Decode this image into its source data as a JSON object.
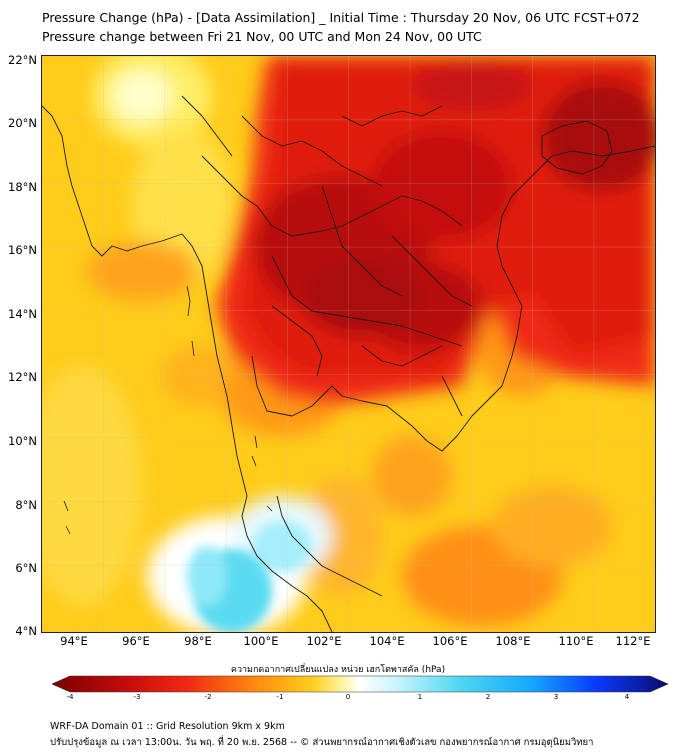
{
  "title": {
    "line1": "Pressure Change (hPa) - [Data Assimilation] _ Initial Time : Thursday 20 Nov, 06 UTC FCST+072",
    "line2": "Pressure change between Fri 21 Nov, 00 UTC and Mon 24 Nov, 00 UTC"
  },
  "axes": {
    "lat_labels": [
      "22°N",
      "20°N",
      "18°N",
      "16°N",
      "14°N",
      "12°N",
      "10°N",
      "8°N",
      "6°N",
      "4°N"
    ],
    "lon_labels": [
      "94°E",
      "96°E",
      "98°E",
      "100°E",
      "102°E",
      "104°E",
      "106°E",
      "108°E",
      "110°E",
      "112°E"
    ]
  },
  "colorbar": {
    "title": "ความกดอากาศเปลี่ยนแปลง หน่วย เฮกโตพาสคัล (hPa)",
    "ticks": [
      "-4",
      "-3",
      "-2",
      "-1",
      "0",
      "1",
      "2",
      "3",
      "4"
    ],
    "range": [
      -4,
      4
    ],
    "colors": {
      "dark_red": "#8b0000",
      "red": "#e31a1c",
      "orange": "#ff7f00",
      "yellow": "#ffd21e",
      "white": "#ffffff",
      "cyan": "#4fd8f0",
      "blue": "#0a3cff",
      "navy": "#0c0c6e"
    }
  },
  "footer": {
    "line1": "WRF-DA Domain 01 :: Grid Resolution 9km x 9km",
    "line2": "ปรับปรุงข้อมูล ณ เวลา 13:00น. วัน พฤ. ที่ 20 พ.ย. 2568 -- © ส่วนพยากรณ์อากาศเชิงตัวเลข กองพยากรณ์อากาศ กรมอุตุนิยมวิทยา"
  }
}
